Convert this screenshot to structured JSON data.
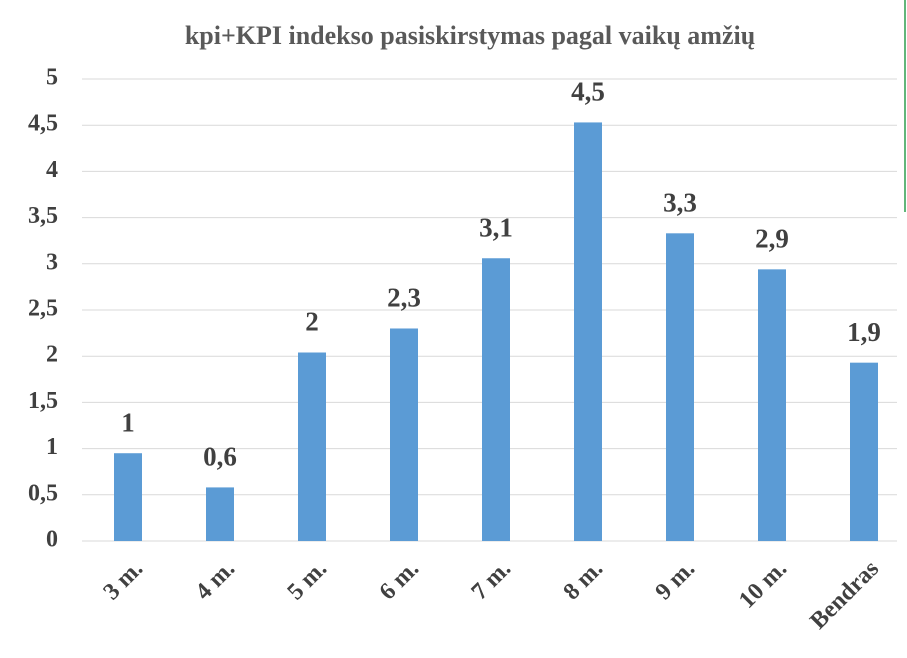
{
  "chart_data": {
    "type": "bar",
    "title": "kpi+KPI indekso pasiskirstymas pagal vaikų amžių",
    "categories": [
      "3 m.",
      "4 m.",
      "5 m.",
      "6 m.",
      "7 m.",
      "8 m.",
      "9 m.",
      "10 m.",
      "Bendras"
    ],
    "values": [
      0.95,
      0.58,
      2.04,
      2.3,
      3.06,
      4.53,
      3.33,
      2.94,
      1.93
    ],
    "value_labels": [
      "1",
      "0,6",
      "2",
      "2,3",
      "3,1",
      "4,5",
      "3,3",
      "2,9",
      "1,9"
    ],
    "color": "#5b9bd5",
    "ylim": [
      0,
      5
    ],
    "yticks": [
      0,
      {
        "value": 0.5,
        "label": "0,5"
      },
      1,
      {
        "value": 1.5,
        "label": "1,5"
      },
      2,
      {
        "value": 2.5,
        "label": "2,5"
      },
      3,
      {
        "value": 3.5,
        "label": "3,5"
      },
      4,
      {
        "value": 4.5,
        "label": "4,5"
      },
      5
    ],
    "grid": true
  }
}
